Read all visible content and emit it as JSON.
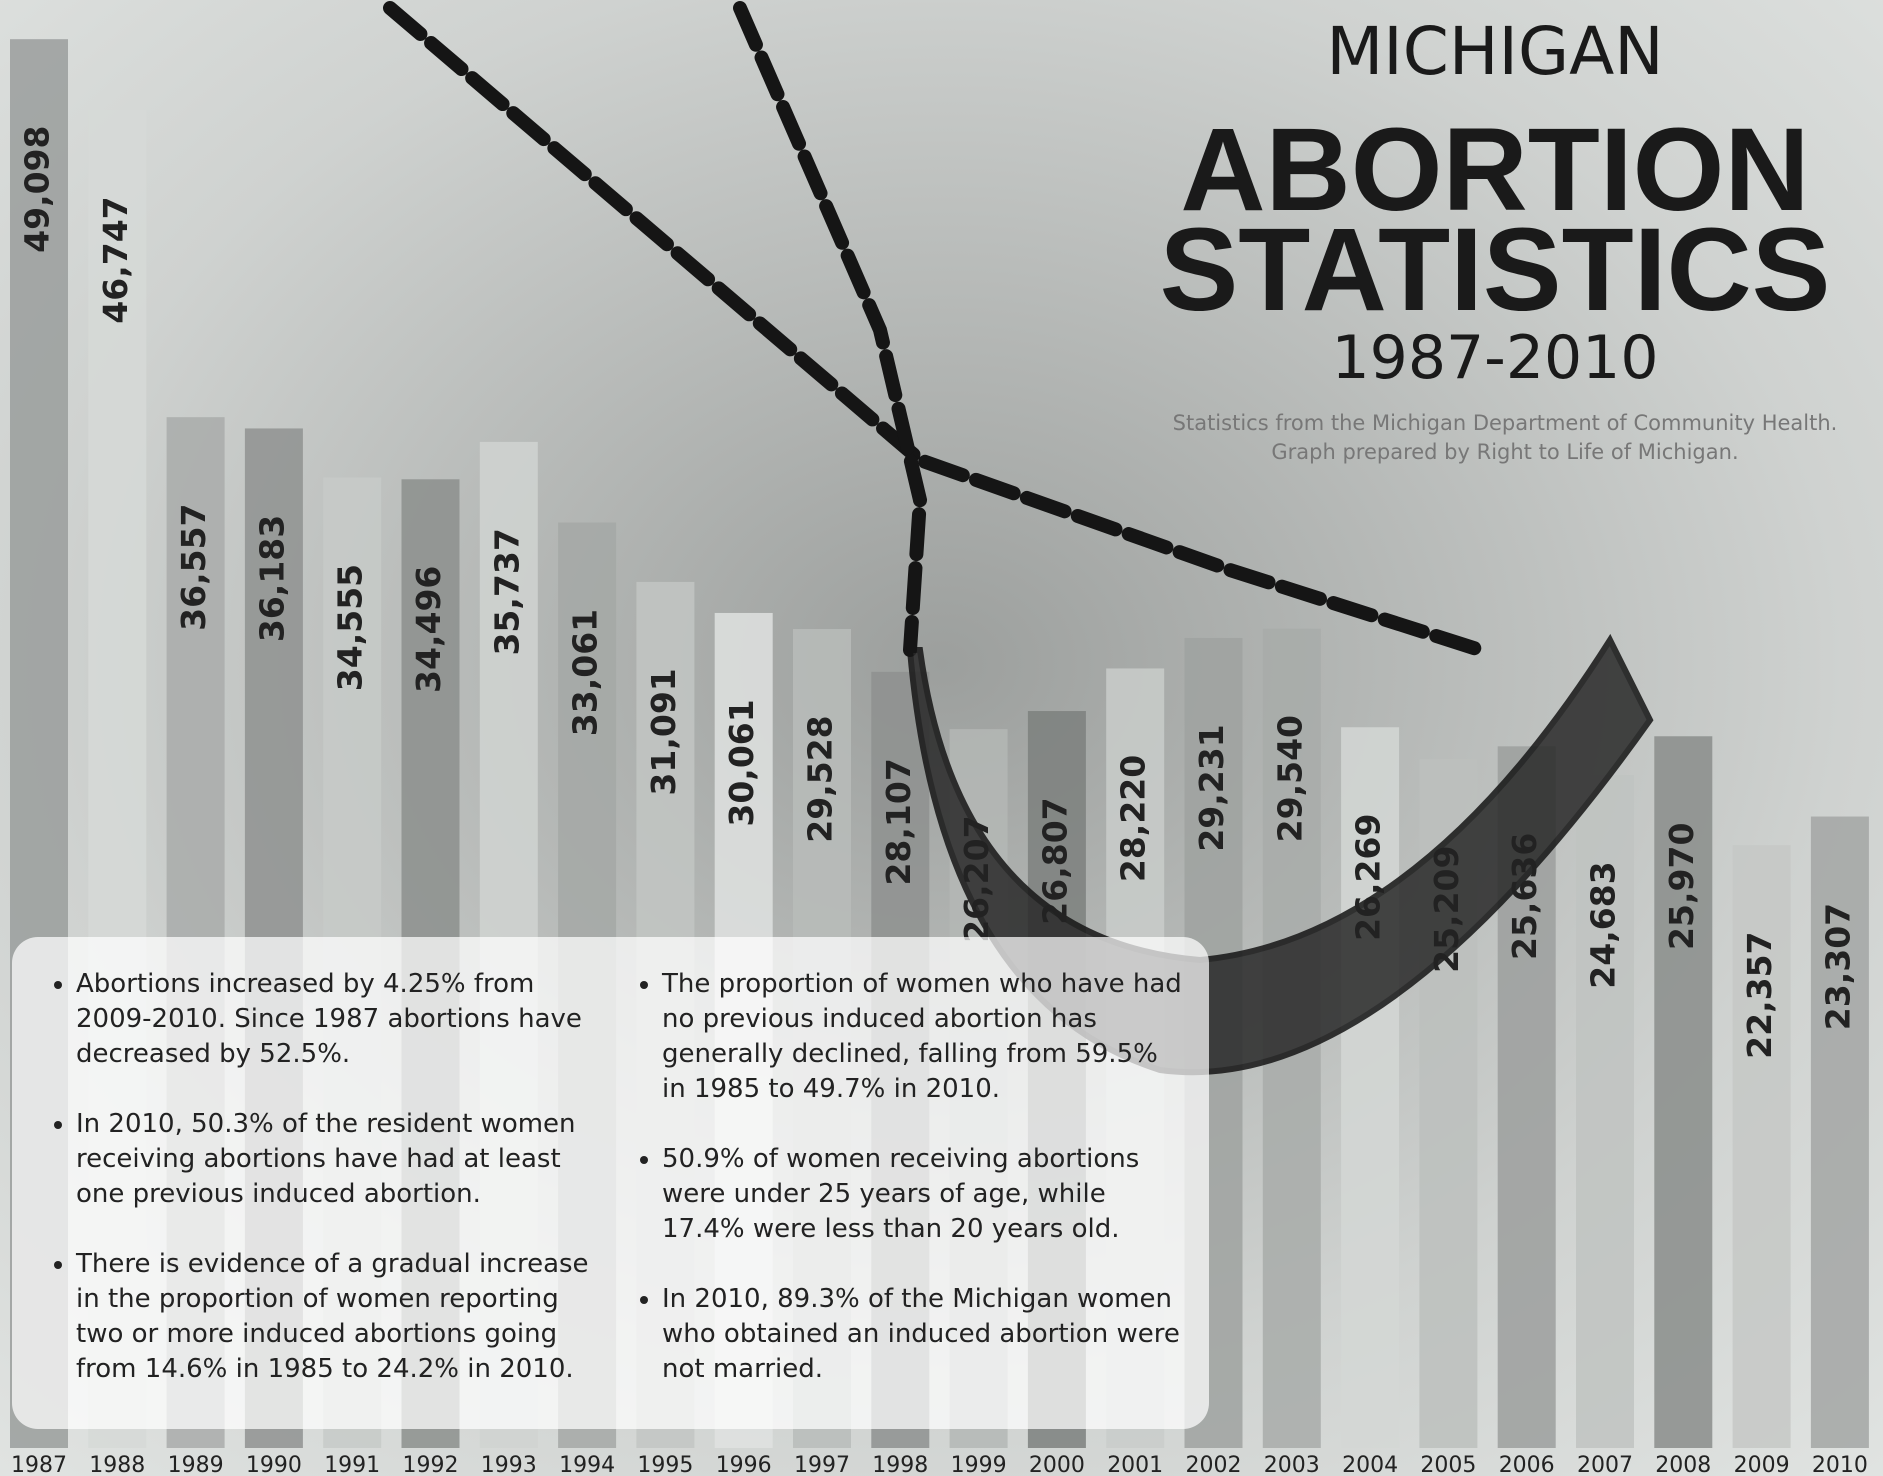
{
  "chart_data": {
    "type": "bar",
    "title": "ABORTION STATISTICS",
    "pretitle": "MICHIGAN",
    "subtitle": "1987-2010",
    "source": [
      "Statistics from the Michigan Department of Community Health.",
      "Graph prepared by Right to Life of Michigan."
    ],
    "categories": [
      "1987",
      "1988",
      "1989",
      "1990",
      "1991",
      "1992",
      "1993",
      "1994",
      "1995",
      "1996",
      "1997",
      "1998",
      "1999",
      "2000",
      "2001",
      "2002",
      "2003",
      "2004",
      "2005",
      "2006",
      "2007",
      "2008",
      "2009",
      "2010"
    ],
    "values": [
      49098,
      46747,
      36557,
      36183,
      34555,
      34496,
      35737,
      33061,
      31091,
      30061,
      29528,
      28107,
      26207,
      26807,
      28220,
      29231,
      29540,
      26269,
      25209,
      25636,
      24683,
      25970,
      22357,
      23307
    ],
    "value_labels": [
      "49,098",
      "46,747",
      "36,557",
      "36,183",
      "34,555",
      "34,496",
      "35,737",
      "33,061",
      "31,091",
      "30,061",
      "29,528",
      "28,107",
      "26,207",
      "26,807",
      "28,220",
      "29,231",
      "29,540",
      "26,269",
      "25,209",
      "25,636",
      "24,683",
      "25,970",
      "22,357",
      "23,307"
    ],
    "colors": [
      "#9a9e9c",
      "#d6d9d7",
      "#a9acaa",
      "#8f9290",
      "#c7cac8",
      "#8c8f8d",
      "#d0d3d1",
      "#a5a8a6",
      "#c2c5c3",
      "#dfe2e0",
      "#b9bcba",
      "#8e918f",
      "#b4b7b5",
      "#7d807e",
      "#c9ccca",
      "#9fa2a0",
      "#a8aba9",
      "#d4d7d5",
      "#bcbfbd",
      "#9c9f9d",
      "#c0c3c1",
      "#8a8d8b",
      "#c5c8c6",
      "#a3a6a4"
    ],
    "ylim": [
      0,
      50000
    ]
  },
  "notes": {
    "left": [
      "Abortions increased by 4.25% from 2009-2010. Since 1987 abortions have decreased by 52.5%.",
      "In 2010, 50.3% of the resident women receiving abortions have had at least one previous induced abortion.",
      "There is evidence of a gradual increase in the proportion of women reporting two or more induced abortions going from 14.6% in 1985 to 24.2% in 2010."
    ],
    "right": [
      "The proportion of women who have had no previous induced abortion has generally declined, falling from 59.5% in 1985 to 49.7% in 2010.",
      "50.9% of women receiving abortions were under 25 years of age, while 17.4% were less than 20 years old.",
      "In 2010, 89.3% of the Michigan women who obtained an induced abortion were not married."
    ]
  }
}
